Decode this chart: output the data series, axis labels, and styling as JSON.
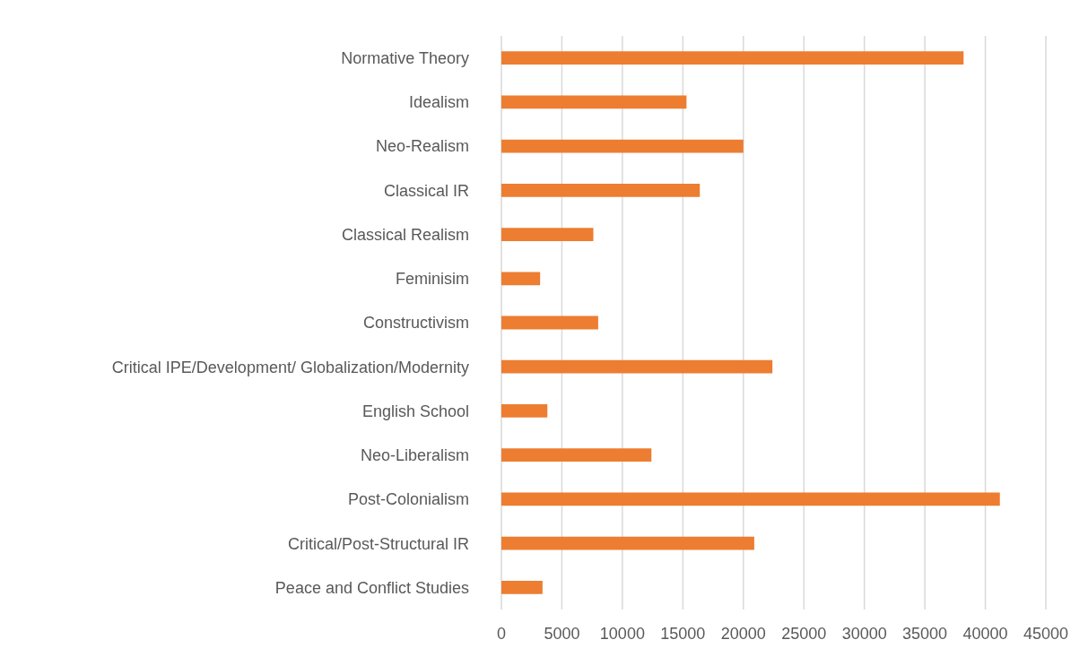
{
  "chart_data": {
    "type": "bar",
    "orientation": "horizontal",
    "categories": [
      "Normative Theory",
      "Idealism",
      "Neo-Realism",
      "Classical IR",
      "Classical Realism",
      "Feminisim",
      "Constructivism",
      "Critical IPE/Development/ Globalization/Modernity",
      "English School",
      "Neo-Liberalism",
      "Post-Colonialism",
      "Critical/Post-Structural IR",
      "Peace and Conflict Studies"
    ],
    "values": [
      38200,
      15300,
      20000,
      16400,
      7600,
      3200,
      8000,
      22400,
      3800,
      12400,
      41200,
      20900,
      3400
    ],
    "color": "#ed7d31",
    "xlim": [
      0,
      45000
    ],
    "xticks": [
      0,
      5000,
      10000,
      15000,
      20000,
      25000,
      30000,
      35000,
      40000,
      45000
    ],
    "grid": "x"
  }
}
